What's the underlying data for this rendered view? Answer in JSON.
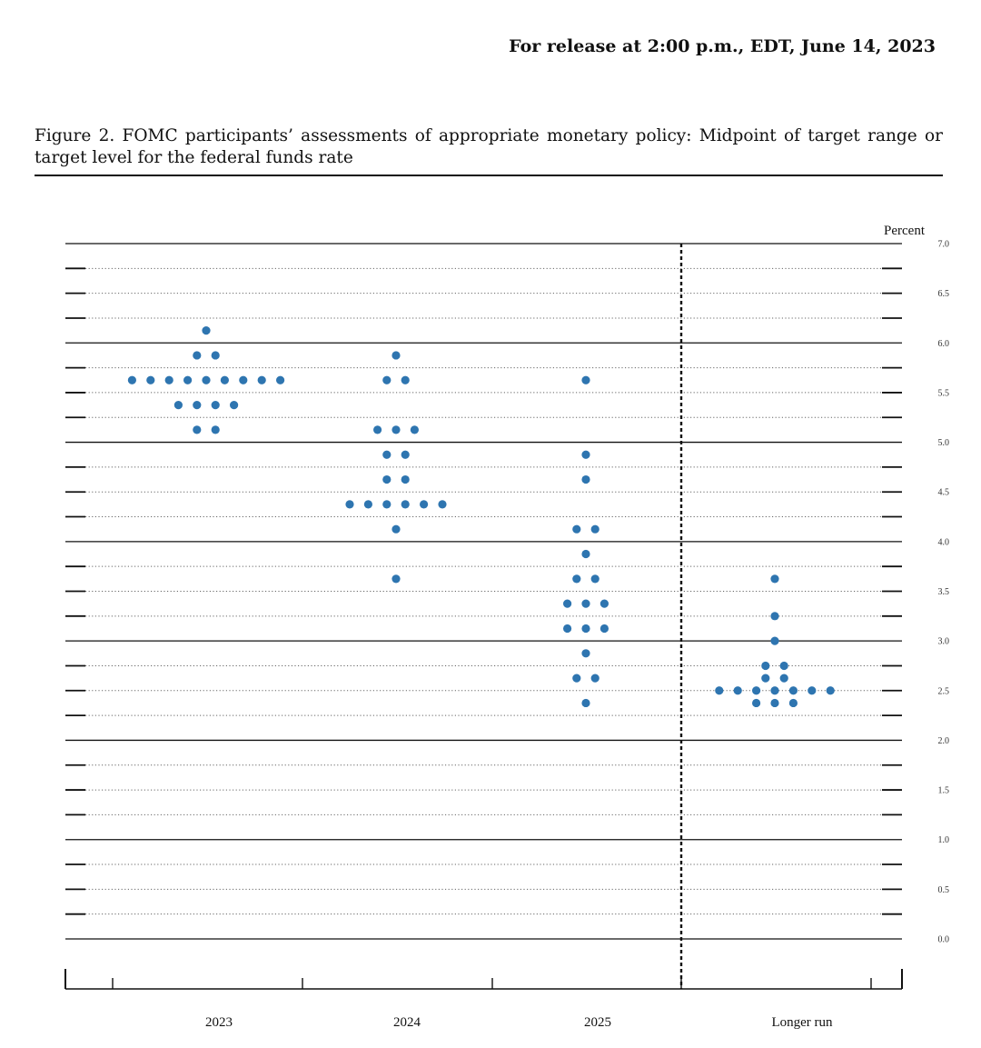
{
  "header": {
    "release": "For release at 2:00 p.m., EDT, June 14, 2023",
    "figure_title": "Figure 2.  FOMC participants’ assessments of appropriate monetary policy:  Midpoint of target range or target level for the federal funds rate"
  },
  "colors": {
    "dot": "#2e75b0",
    "line": "#111111"
  },
  "chart_data": {
    "type": "scatter",
    "ylabel": "Percent",
    "ylim": [
      0,
      7
    ],
    "ytick_step": 0.5,
    "yticks": [
      "0.0",
      "0.5",
      "1.0",
      "1.5",
      "2.0",
      "2.5",
      "3.0",
      "3.5",
      "4.0",
      "4.5",
      "5.0",
      "5.5",
      "6.0",
      "6.5",
      "7.0"
    ],
    "grid": "dotted at 0.25, solid at whole numbers",
    "categories": [
      "2023",
      "2024",
      "2025",
      "Longer run"
    ],
    "series": [
      {
        "category": "2023",
        "points": [
          {
            "y": 6.125,
            "count": 1
          },
          {
            "y": 5.875,
            "count": 2
          },
          {
            "y": 5.625,
            "count": 9
          },
          {
            "y": 5.375,
            "count": 4
          },
          {
            "y": 5.125,
            "count": 2
          }
        ]
      },
      {
        "category": "2024",
        "points": [
          {
            "y": 5.875,
            "count": 1
          },
          {
            "y": 5.625,
            "count": 2
          },
          {
            "y": 5.125,
            "count": 3
          },
          {
            "y": 4.875,
            "count": 2
          },
          {
            "y": 4.625,
            "count": 2
          },
          {
            "y": 4.375,
            "count": 6
          },
          {
            "y": 4.125,
            "count": 1
          },
          {
            "y": 3.625,
            "count": 1
          }
        ]
      },
      {
        "category": "2025",
        "points": [
          {
            "y": 5.625,
            "count": 1
          },
          {
            "y": 4.875,
            "count": 1
          },
          {
            "y": 4.625,
            "count": 1
          },
          {
            "y": 4.125,
            "count": 2
          },
          {
            "y": 3.875,
            "count": 1
          },
          {
            "y": 3.625,
            "count": 2
          },
          {
            "y": 3.375,
            "count": 3
          },
          {
            "y": 3.125,
            "count": 3
          },
          {
            "y": 2.875,
            "count": 1
          },
          {
            "y": 2.625,
            "count": 2
          },
          {
            "y": 2.375,
            "count": 1
          }
        ]
      },
      {
        "category": "Longer run",
        "points": [
          {
            "y": 3.625,
            "count": 1
          },
          {
            "y": 3.25,
            "count": 1
          },
          {
            "y": 3.0,
            "count": 1
          },
          {
            "y": 2.75,
            "count": 2
          },
          {
            "y": 2.625,
            "count": 2
          },
          {
            "y": 2.5,
            "count": 7
          },
          {
            "y": 2.375,
            "count": 3
          }
        ]
      }
    ]
  }
}
